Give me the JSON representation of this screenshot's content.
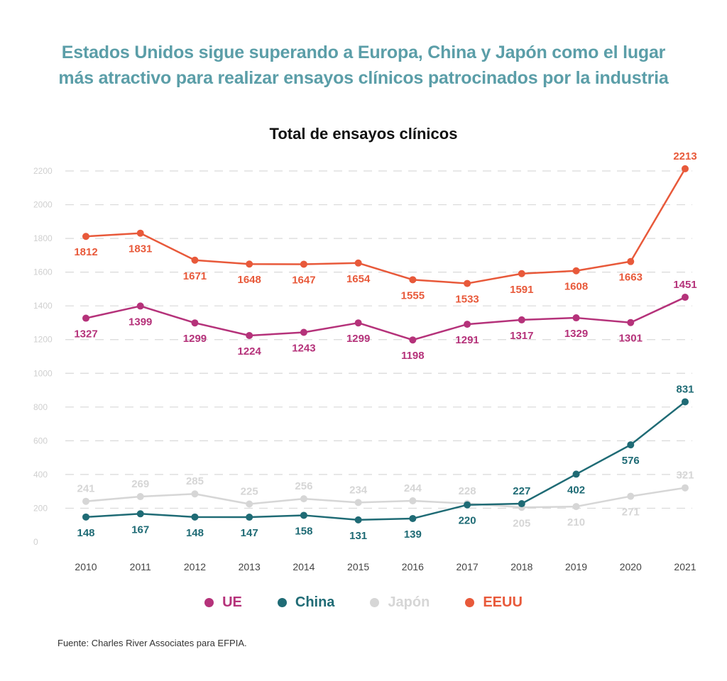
{
  "headline": {
    "line1": "Estados Unidos sigue superando a Europa, China y Japón como el lugar",
    "line2": "más atractivo para realizar ensayos clínicos patrocinados por la industria"
  },
  "source": "Fuente: Charles River Associates para EFPIA.",
  "chart_data": {
    "type": "line",
    "title": "Total de ensayos clínicos",
    "xlabel": "",
    "ylabel": "",
    "x": [
      "2010",
      "2011",
      "2012",
      "2013",
      "2014",
      "2015",
      "2016",
      "2017",
      "2018",
      "2019",
      "2020",
      "2021"
    ],
    "yticks": [
      0,
      200,
      400,
      600,
      800,
      1000,
      1200,
      1400,
      1600,
      1800,
      2000,
      2200
    ],
    "ylim": [
      0,
      2200
    ],
    "grid": true,
    "legend_position": "bottom",
    "series": [
      {
        "name": "UE",
        "color": "#b5327a",
        "values": [
          1327,
          1399,
          1299,
          1224,
          1243,
          1299,
          1198,
          1291,
          1317,
          1329,
          1301,
          1451
        ],
        "label_side": [
          "below",
          "below",
          "below",
          "below",
          "below",
          "below",
          "below",
          "below",
          "below",
          "below",
          "below",
          "above"
        ]
      },
      {
        "name": "China",
        "color": "#1f6b75",
        "values": [
          148,
          167,
          148,
          147,
          158,
          131,
          139,
          220,
          227,
          402,
          576,
          831
        ],
        "label_side": [
          "below",
          "below",
          "below",
          "below",
          "below",
          "below",
          "below",
          "below",
          "above",
          "below",
          "below",
          "above"
        ]
      },
      {
        "name": "Japón",
        "color": "#d6d6d6",
        "values": [
          241,
          269,
          285,
          225,
          256,
          234,
          244,
          228,
          205,
          210,
          271,
          321
        ],
        "label_side": [
          "above",
          "above",
          "above",
          "above",
          "above",
          "above",
          "above",
          "above",
          "below",
          "below",
          "below",
          "above"
        ]
      },
      {
        "name": "EEUU",
        "color": "#e8593a",
        "values": [
          1812,
          1831,
          1671,
          1648,
          1647,
          1654,
          1555,
          1533,
          1591,
          1608,
          1663,
          2213
        ],
        "label_side": [
          "below",
          "below",
          "below",
          "below",
          "below",
          "below",
          "below",
          "below",
          "below",
          "below",
          "below",
          "above"
        ]
      }
    ]
  }
}
